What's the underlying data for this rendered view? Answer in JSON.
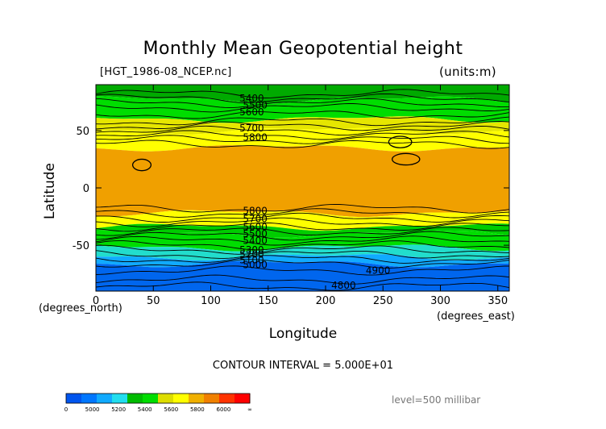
{
  "header": {
    "title": "Monthly Mean Geopotential height",
    "file": "[HGT_1986-08_NCEP.nc]",
    "units": "(units:m)"
  },
  "axes": {
    "xlabel": "Longitude",
    "ylabel": "Latitude",
    "x_origin_unit": "(degrees_north)",
    "x_unit": "(degrees_east)"
  },
  "footer": {
    "contour_interval": "CONTOUR INTERVAL = 5.000E+01",
    "level": "level=500 millibar"
  },
  "chart_data": {
    "type": "heatmap",
    "title": "Monthly Mean Geopotential height",
    "xlabel": "Longitude",
    "ylabel": "Latitude",
    "xlim": [
      0,
      360
    ],
    "ylim": [
      -90,
      90
    ],
    "x_ticks": [
      0,
      50,
      100,
      150,
      200,
      250,
      300,
      350
    ],
    "y_ticks": [
      -50,
      0,
      50
    ],
    "contour_interval": 50,
    "contour_labels": [
      {
        "value": "5400",
        "x": 125,
        "y": 78
      },
      {
        "value": "5500",
        "x": 128,
        "y": 72
      },
      {
        "value": "5600",
        "x": 125,
        "y": 66
      },
      {
        "value": "5700",
        "x": 125,
        "y": 52
      },
      {
        "value": "5800",
        "x": 128,
        "y": 44
      },
      {
        "value": "5800",
        "x": 128,
        "y": -20
      },
      {
        "value": "5700",
        "x": 128,
        "y": -27
      },
      {
        "value": "5600",
        "x": 128,
        "y": -34
      },
      {
        "value": "5500",
        "x": 128,
        "y": -40
      },
      {
        "value": "5400",
        "x": 128,
        "y": -46
      },
      {
        "value": "5300",
        "x": 125,
        "y": -54
      },
      {
        "value": "5200",
        "x": 125,
        "y": -58
      },
      {
        "value": "5100",
        "x": 125,
        "y": -63
      },
      {
        "value": "5000",
        "x": 128,
        "y": -67
      },
      {
        "value": "4900",
        "x": 235,
        "y": -72
      },
      {
        "value": "4800",
        "x": 205,
        "y": -85
      }
    ],
    "bands": [
      {
        "lat_top": 90,
        "lat_bottom": 77,
        "color": "#00aa00"
      },
      {
        "lat_top": 77,
        "lat_bottom": 60,
        "color": "#00dd00"
      },
      {
        "lat_top": 60,
        "lat_bottom": 50,
        "color": "#e6e600"
      },
      {
        "lat_top": 50,
        "lat_bottom": 35,
        "color": "#ffff00"
      },
      {
        "lat_top": 35,
        "lat_bottom": -22,
        "color": "#f0a000"
      },
      {
        "lat_top": -22,
        "lat_bottom": -34,
        "color": "#ffff00"
      },
      {
        "lat_top": -34,
        "lat_bottom": -40,
        "color": "#00cc00"
      },
      {
        "lat_top": -40,
        "lat_bottom": -52,
        "color": "#00dd00"
      },
      {
        "lat_top": -52,
        "lat_bottom": -60,
        "color": "#22ddcc"
      },
      {
        "lat_top": -60,
        "lat_bottom": -66,
        "color": "#11aaff"
      },
      {
        "lat_top": -66,
        "lat_bottom": -90,
        "color": "#0066ee"
      }
    ],
    "colorbar": {
      "labels": [
        "0",
        "5000",
        "5200",
        "5400",
        "5600",
        "5800",
        "6000",
        "∞"
      ],
      "colors": [
        "#0055ee",
        "#0077ff",
        "#11aaff",
        "#22ddee",
        "#00bb00",
        "#00dd00",
        "#dddd00",
        "#ffff00",
        "#f0b000",
        "#f08000",
        "#ff3300",
        "#ff0000"
      ]
    }
  }
}
